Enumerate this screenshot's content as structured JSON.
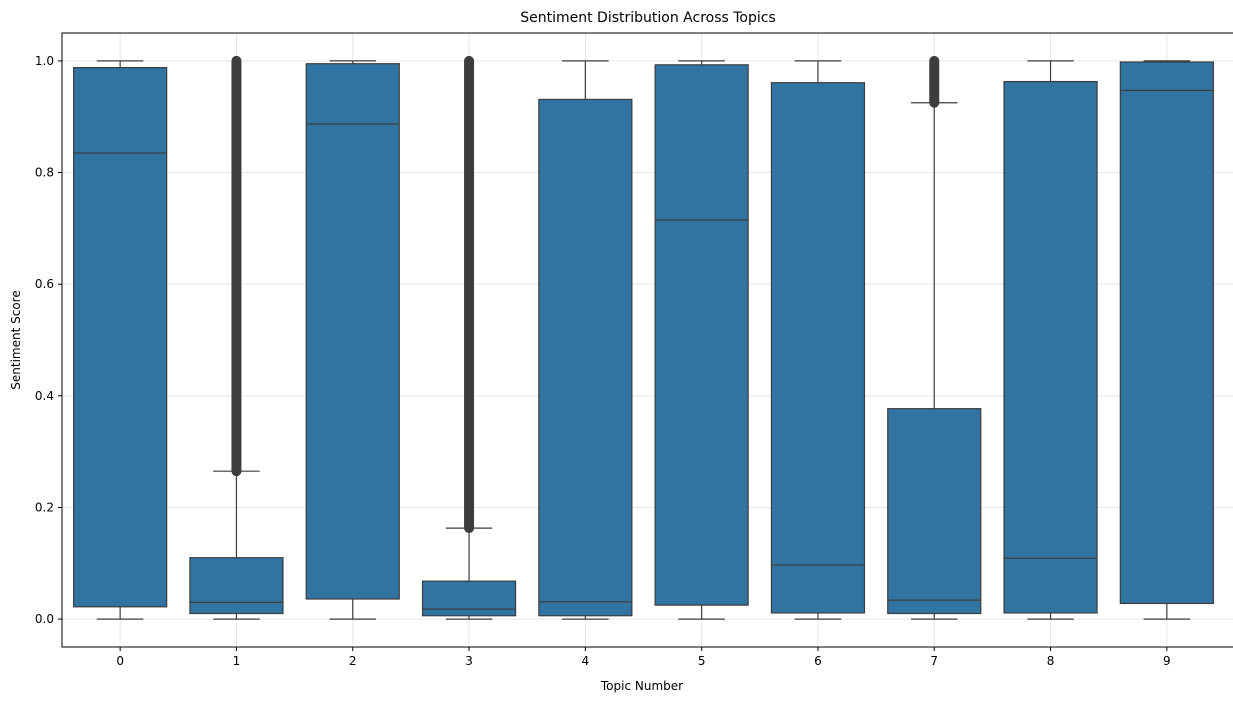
{
  "chart_data": {
    "type": "boxplot",
    "title": "Sentiment Distribution Across Topics",
    "xlabel": "Topic Number",
    "ylabel": "Sentiment Score",
    "ylim": [
      -0.05,
      1.05
    ],
    "yticks": [
      0.0,
      0.2,
      0.4,
      0.6,
      0.8,
      1.0
    ],
    "ytick_labels": [
      "0.0",
      "0.2",
      "0.4",
      "0.6",
      "0.8",
      "1.0"
    ],
    "grid": true,
    "box_color": "#3274a1",
    "line_color": "#3d3d3d",
    "categories": [
      "0",
      "1",
      "2",
      "3",
      "4",
      "5",
      "6",
      "7",
      "8",
      "9"
    ],
    "boxes": [
      {
        "topic": "0",
        "whislo": 0.0,
        "q1": 0.022,
        "med": 0.835,
        "q3": 0.988,
        "whishi": 1.0,
        "fliers": [
          0.0,
          1.0
        ]
      },
      {
        "topic": "1",
        "whislo": 0.0,
        "q1": 0.01,
        "med": 0.03,
        "q3": 0.11,
        "whishi": 0.265,
        "fliers": [
          0.265,
          1.0
        ]
      },
      {
        "topic": "2",
        "whislo": 0.0,
        "q1": 0.036,
        "med": 0.887,
        "q3": 0.995,
        "whishi": 1.0,
        "fliers": [
          0.0,
          1.0
        ]
      },
      {
        "topic": "3",
        "whislo": 0.0,
        "q1": 0.006,
        "med": 0.018,
        "q3": 0.068,
        "whishi": 0.163,
        "fliers": [
          0.163,
          1.0
        ]
      },
      {
        "topic": "4",
        "whislo": 0.0,
        "q1": 0.006,
        "med": 0.031,
        "q3": 0.931,
        "whishi": 1.0,
        "fliers": [
          0.0,
          1.0
        ]
      },
      {
        "topic": "5",
        "whislo": 0.0,
        "q1": 0.025,
        "med": 0.715,
        "q3": 0.993,
        "whishi": 1.0,
        "fliers": [
          0.0,
          1.0
        ]
      },
      {
        "topic": "6",
        "whislo": 0.0,
        "q1": 0.011,
        "med": 0.097,
        "q3": 0.961,
        "whishi": 1.0,
        "fliers": [
          0.0,
          1.0
        ]
      },
      {
        "topic": "7",
        "whislo": 0.0,
        "q1": 0.01,
        "med": 0.034,
        "q3": 0.377,
        "whishi": 0.925,
        "fliers": [
          0.925,
          1.0
        ]
      },
      {
        "topic": "8",
        "whislo": 0.0,
        "q1": 0.011,
        "med": 0.109,
        "q3": 0.963,
        "whishi": 1.0,
        "fliers": [
          0.0,
          1.0
        ]
      },
      {
        "topic": "9",
        "whislo": 0.0,
        "q1": 0.028,
        "med": 0.947,
        "q3": 0.998,
        "whishi": 1.0,
        "fliers": [
          0.0,
          1.0
        ]
      }
    ]
  }
}
